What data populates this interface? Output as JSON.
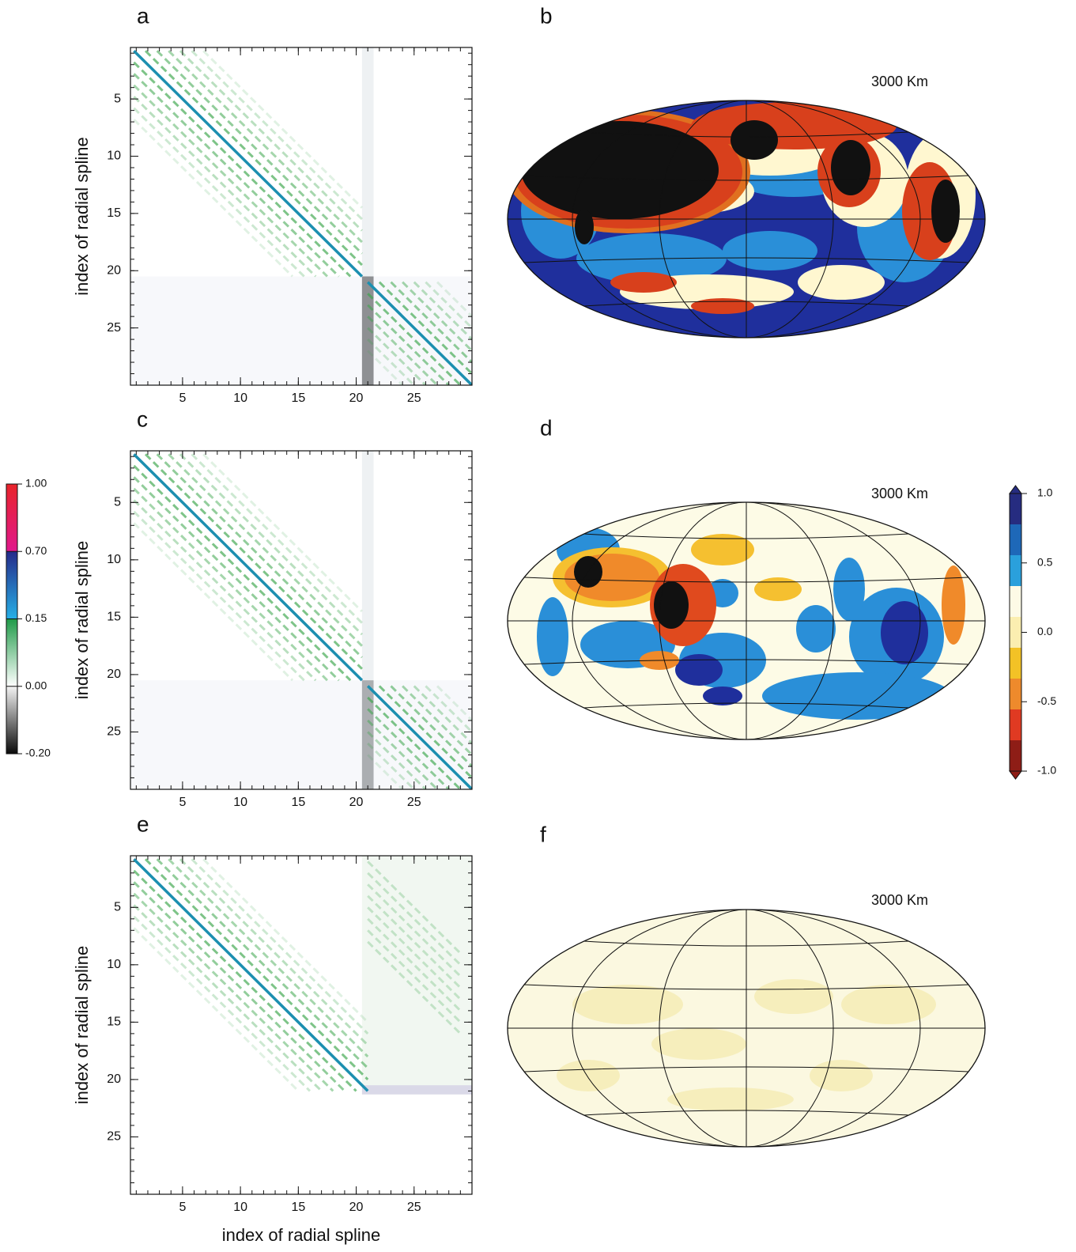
{
  "figure": {
    "matrix_axis": {
      "lim": [
        0.5,
        30
      ],
      "ticks": [
        5,
        10,
        15,
        20,
        25
      ]
    },
    "matrix_panels": [
      {
        "label": "a",
        "y_label": "index of radial spline"
      },
      {
        "label": "c",
        "y_label": "index of radial spline"
      },
      {
        "label": "e",
        "y_label": "index of radial spline",
        "x_label": "index of radial spline"
      }
    ],
    "map_panels": [
      {
        "label": "b",
        "depth": "3000 Km"
      },
      {
        "label": "d",
        "depth": "3000 Km"
      },
      {
        "label": "f",
        "depth": "3000 Km"
      }
    ],
    "colorbar_left": {
      "ticks": [
        {
          "value": 1,
          "label": "1.00"
        },
        {
          "value": 0.7,
          "label": "0.70"
        },
        {
          "value": 0.15,
          "label": "0.15"
        },
        {
          "value": 0,
          "label": "0.00"
        },
        {
          "value": -0.2,
          "label": "-0.20"
        }
      ]
    },
    "colorbar_right": {
      "lim": [
        -1,
        1
      ],
      "ticks": [
        {
          "value": 1,
          "label": "1.0"
        },
        {
          "value": 0.5,
          "label": "0.5"
        },
        {
          "value": 0,
          "label": "0.0"
        },
        {
          "value": -0.5,
          "label": "-0.5"
        },
        {
          "value": -1,
          "label": "-1.0"
        }
      ],
      "colors": [
        "#262c80",
        "#1e68b8",
        "#2aa0dc",
        "#fdfae6",
        "#fbeeb0",
        "#f3c226",
        "#ee8a2c",
        "#e03a22",
        "#8e1d16"
      ]
    }
  }
}
